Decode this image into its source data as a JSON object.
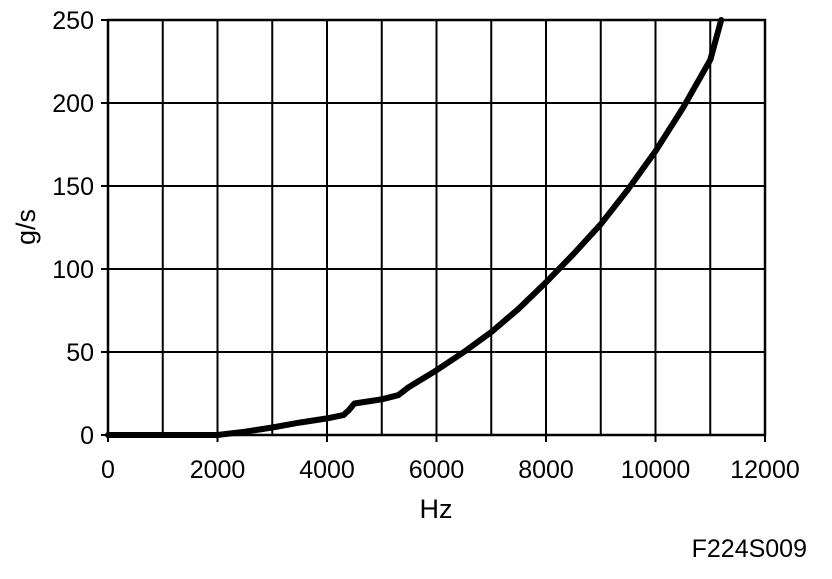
{
  "chart_data": {
    "type": "line",
    "xlabel": "Hz",
    "ylabel": "g/s",
    "xlim": [
      0,
      12000
    ],
    "ylim": [
      0,
      250
    ],
    "x_ticks": [
      0,
      2000,
      4000,
      6000,
      8000,
      10000,
      12000
    ],
    "y_ticks": [
      0,
      50,
      100,
      150,
      200,
      250
    ],
    "x_tick_labels": [
      "0",
      "2000",
      "4000",
      "6000",
      "8000",
      "10000",
      "12000"
    ],
    "y_tick_labels": [
      "0",
      "50",
      "100",
      "150",
      "200",
      "250"
    ],
    "x_grid_step": 1000,
    "y_grid_step": 50,
    "grid": true,
    "legend": "none",
    "series": [
      {
        "color": "#000000",
        "x": [
          0,
          2000,
          2500,
          3000,
          3500,
          4000,
          4300,
          4400,
          4500,
          4800,
          5000,
          5300,
          5500,
          6000,
          6500,
          7000,
          7500,
          8000,
          8500,
          9000,
          9500,
          10000,
          10500,
          11000,
          11200
        ],
        "y": [
          0,
          0,
          2,
          4.5,
          7.5,
          10,
          12,
          15,
          19,
          20.5,
          21.5,
          24,
          29,
          39,
          50,
          62,
          76,
          92,
          109,
          127,
          148,
          171,
          197,
          226,
          250
        ]
      }
    ]
  },
  "figure_code": "F224S009"
}
